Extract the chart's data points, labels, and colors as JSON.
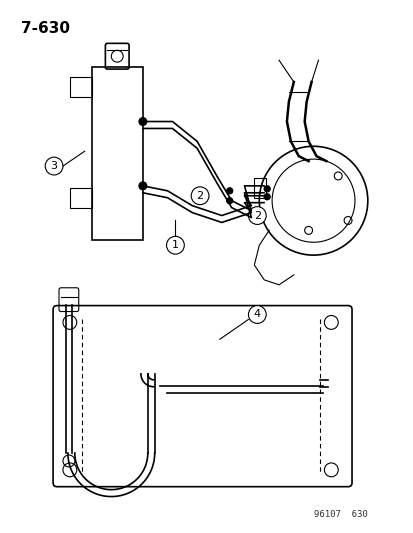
{
  "title": "7-630",
  "footnote": "96107  630",
  "bg_color": "#ffffff",
  "fg_color": "#000000",
  "fig_width": 4.14,
  "fig_height": 5.33,
  "dpi": 100
}
